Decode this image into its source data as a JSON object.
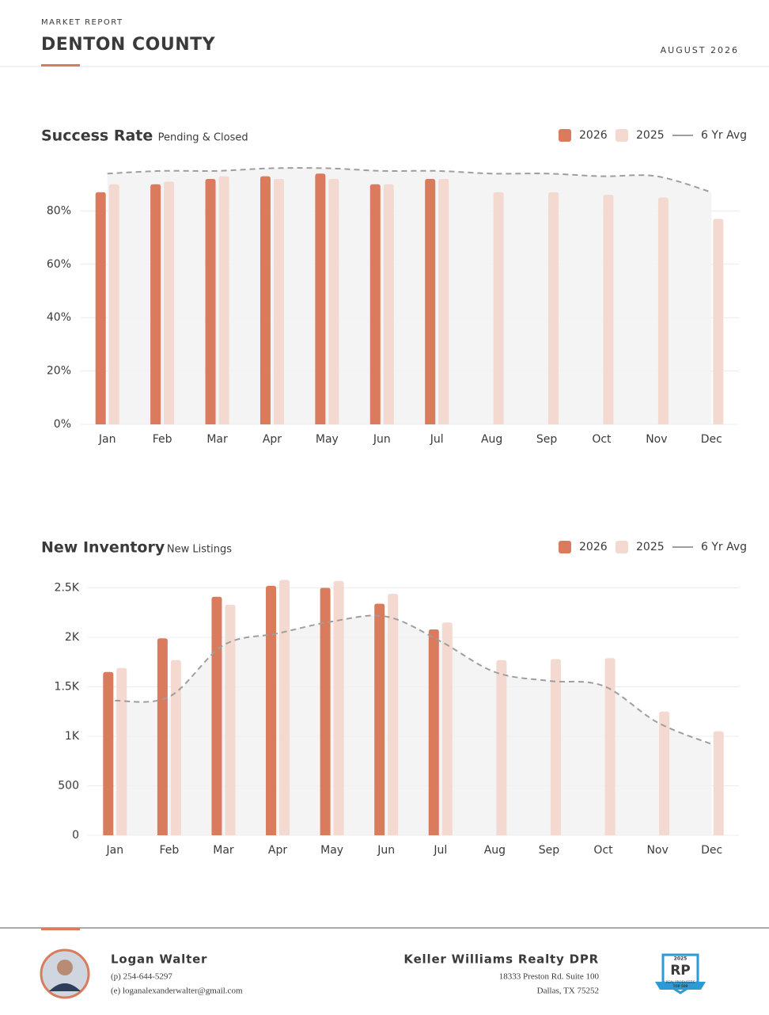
{
  "header": {
    "kicker": "MARKET REPORT",
    "title": "DENTON COUNTY",
    "date": "AUGUST 2026"
  },
  "chart_data": [
    {
      "type": "bar",
      "title": "Success Rate",
      "subtitle": "Pending & Closed",
      "categories": [
        "Jan",
        "Feb",
        "Mar",
        "Apr",
        "May",
        "Jun",
        "Jul",
        "Aug",
        "Sep",
        "Oct",
        "Nov",
        "Dec"
      ],
      "series": [
        {
          "name": "2026",
          "color": "#d97b5c",
          "values": [
            87,
            90,
            92,
            93,
            94,
            90,
            92,
            null,
            null,
            null,
            null,
            null
          ]
        },
        {
          "name": "2025",
          "color": "#f3d9d0",
          "values": [
            90,
            91,
            93,
            92,
            92,
            90,
            92,
            87,
            87,
            86,
            85,
            77
          ]
        },
        {
          "name": "6 Yr Avg",
          "color": "#9e9e9e",
          "type": "line",
          "dashed": true,
          "area": true,
          "values": [
            94,
            95,
            95,
            96,
            96,
            95,
            95,
            94,
            94,
            93,
            93,
            87
          ]
        }
      ],
      "ylim": [
        0,
        100
      ],
      "yticks": [
        {
          "value": 0,
          "label": "0%"
        },
        {
          "value": 20,
          "label": "20%"
        },
        {
          "value": 40,
          "label": "40%"
        },
        {
          "value": 60,
          "label": "60%"
        },
        {
          "value": 80,
          "label": "80%"
        }
      ],
      "grid": true,
      "legend": "top-right"
    },
    {
      "type": "bar",
      "title": "New Inventory",
      "subtitle": "New Listings",
      "categories": [
        "Jan",
        "Feb",
        "Mar",
        "Apr",
        "May",
        "Jun",
        "Jul",
        "Aug",
        "Sep",
        "Oct",
        "Nov",
        "Dec"
      ],
      "series": [
        {
          "name": "2026",
          "color": "#d97b5c",
          "values": [
            1650,
            1990,
            2410,
            2520,
            2500,
            2340,
            2080,
            null,
            null,
            null,
            null,
            null
          ]
        },
        {
          "name": "2025",
          "color": "#f3d9d0",
          "values": [
            1690,
            1770,
            2330,
            2580,
            2570,
            2440,
            2150,
            1770,
            1780,
            1790,
            1250,
            1050
          ]
        },
        {
          "name": "6 Yr Avg",
          "color": "#9e9e9e",
          "type": "line",
          "dashed": true,
          "area": true,
          "values": [
            1360,
            1400,
            1920,
            2040,
            2160,
            2210,
            1960,
            1650,
            1560,
            1510,
            1140,
            920
          ]
        }
      ],
      "ylim": [
        0,
        2600
      ],
      "yticks": [
        0,
        500,
        {
          "value": 1000,
          "label": "1K"
        },
        {
          "value": 1500,
          "label": "1.5K"
        },
        {
          "value": 2000,
          "label": "2K"
        },
        {
          "value": 2500,
          "label": "2.5K"
        }
      ],
      "grid": true,
      "legend": "top-right"
    }
  ],
  "footer": {
    "agent": {
      "name": "Logan Walter",
      "phone": "(p) 254-644-5297",
      "email": "(e) loganalexanderwalter@gmail.com"
    },
    "company": {
      "name": "Keller Williams Realty DPR",
      "address1": "18333 Preston Rd. Suite 100",
      "address2": "Dallas, TX 75252"
    },
    "badge": {
      "year": "2025",
      "mark": "RP",
      "line": "REAL PRODUCERS",
      "rank": "TOP 500"
    }
  }
}
